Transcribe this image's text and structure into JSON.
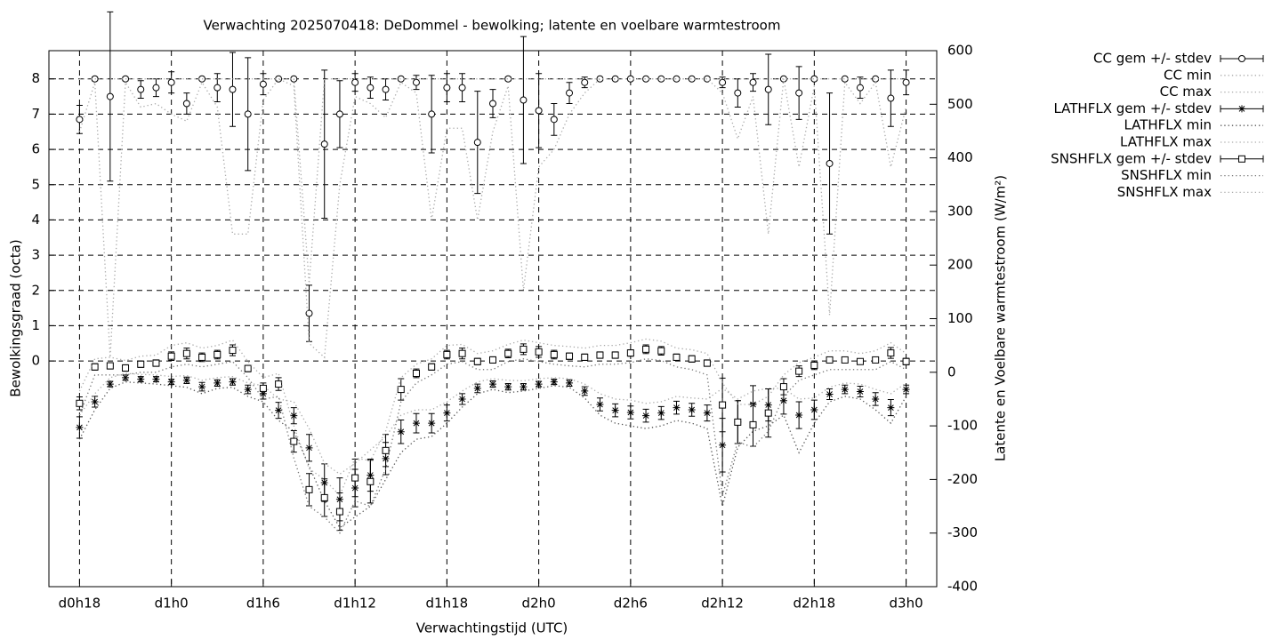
{
  "chart_data": {
    "type": "errorbar",
    "title": "Verwachting 2025070418: DeDommel - bewolking; latente en voelbare warmtestroom",
    "xlabel": "Verwachtingstijd (UTC)",
    "ylabel": "Bewolkingsgraad (octa)",
    "y2label": "Latente en Voelbare warmtestroom (W/m²)",
    "x": [
      0,
      1,
      2,
      3,
      4,
      5,
      6,
      7,
      8,
      9,
      10,
      11,
      12,
      13,
      14,
      15,
      16,
      17,
      18,
      19,
      20,
      21,
      22,
      23,
      24,
      25,
      26,
      27,
      28,
      29,
      30,
      31,
      32,
      33,
      34,
      35,
      36,
      37,
      38,
      39,
      40,
      41,
      42,
      43,
      44,
      45,
      46,
      47,
      48,
      49,
      50,
      51,
      52,
      53,
      54
    ],
    "xlim": [
      -2,
      56
    ],
    "xticks": [
      {
        "value": 0,
        "label": "d0h18"
      },
      {
        "value": 6,
        "label": "d1h0"
      },
      {
        "value": 12,
        "label": "d1h6"
      },
      {
        "value": 18,
        "label": "d1h12"
      },
      {
        "value": 24,
        "label": "d1h18"
      },
      {
        "value": 30,
        "label": "d2h0"
      },
      {
        "value": 36,
        "label": "d2h6"
      },
      {
        "value": 42,
        "label": "d2h12"
      },
      {
        "value": 48,
        "label": "d2h18"
      },
      {
        "value": 54,
        "label": "d3h0"
      }
    ],
    "ylim": [
      -6.4,
      8.8
    ],
    "yticks": [
      0,
      1,
      2,
      3,
      4,
      5,
      6,
      7,
      8
    ],
    "y2lim": [
      -400,
      600
    ],
    "y2ticks": [
      -400,
      -300,
      -200,
      -100,
      0,
      100,
      200,
      300,
      400,
      500,
      600
    ],
    "grid": true,
    "legend": "outside-right",
    "series": [
      {
        "name": "CC gem +/- stdev",
        "color": "#000000",
        "marker": "circle",
        "values": [
          6.85,
          8.0,
          7.5,
          8.0,
          7.7,
          7.75,
          7.9,
          7.3,
          8.0,
          7.75,
          7.7,
          7.0,
          7.85,
          8.0,
          8.0,
          1.35,
          6.15,
          7.0,
          7.9,
          7.75,
          7.7,
          8.0,
          7.9,
          7.0,
          7.75,
          7.75,
          6.2,
          7.3,
          8.0,
          7.4,
          7.1,
          6.85,
          7.6,
          7.9,
          8.0,
          8.0,
          8.0,
          8.0,
          8.0,
          8.0,
          8.0,
          8.0,
          7.9,
          7.6,
          7.9,
          7.7,
          8.0,
          7.6,
          8.0,
          5.6,
          8.0,
          7.75,
          8.0,
          7.45,
          7.9
        ],
        "errors": [
          0.4,
          0.05,
          2.4,
          0.05,
          0.25,
          0.25,
          0.3,
          0.3,
          0,
          0.4,
          1.05,
          1.6,
          0.3,
          0,
          0,
          0.8,
          2.1,
          0.95,
          0.25,
          0.3,
          0.3,
          0,
          0.2,
          1.1,
          0.4,
          0.4,
          1.45,
          0.4,
          0.05,
          1.8,
          1.05,
          0.45,
          0.3,
          0.15,
          0,
          0,
          0,
          0,
          0,
          0,
          0,
          0,
          0.15,
          0.4,
          0.25,
          1.0,
          0,
          0.75,
          0,
          2.0,
          0,
          0.3,
          0,
          0.8,
          0.35
        ]
      },
      {
        "name": "CC min",
        "color": "#aaaaaa",
        "style": "dotted",
        "values": [
          6.5,
          7.9,
          0.1,
          7.9,
          7.2,
          7.3,
          7.0,
          6.8,
          7.9,
          7.2,
          3.6,
          3.6,
          7.4,
          8,
          7.8,
          0.5,
          0.1,
          5.0,
          7.5,
          7.3,
          6.9,
          7.9,
          7.6,
          4.0,
          6.6,
          6.6,
          4.0,
          6.5,
          7.8,
          2.0,
          5.5,
          6.0,
          7.0,
          7.6,
          8,
          8,
          8,
          8,
          8,
          8,
          8,
          8,
          7.6,
          6.3,
          7.5,
          3.6,
          8,
          5.5,
          7.8,
          1.3,
          7.9,
          7.3,
          7.9,
          5.5,
          7.2
        ]
      },
      {
        "name": "CC max",
        "color": "#aaaaaa",
        "style": "dotted",
        "values": [
          8,
          8,
          8,
          8,
          8,
          8,
          8,
          8,
          8,
          8,
          8,
          8,
          8,
          8,
          8,
          2.2,
          8,
          8,
          8,
          8,
          8,
          8,
          8,
          8,
          8,
          8,
          8,
          8,
          8,
          8,
          8,
          8,
          8,
          8,
          8,
          8,
          8,
          8,
          8,
          8,
          8,
          8,
          8,
          8,
          8,
          8,
          8,
          8,
          8,
          8,
          8,
          8,
          8,
          8,
          8
        ]
      },
      {
        "name": "LATHFLX gem +/- stdev",
        "color": "#000000",
        "marker": "star",
        "axis": "y2",
        "values": [
          -103,
          -55,
          -22,
          -10,
          -13,
          -13,
          -18,
          -15,
          -27,
          -20,
          -18,
          -32,
          -40,
          -71,
          -81,
          -141,
          -206,
          -237,
          -216,
          -192,
          -161,
          -111,
          -95,
          -95,
          -76,
          -50,
          -30,
          -22,
          -27,
          -27,
          -22,
          -18,
          -20,
          -35,
          -60,
          -71,
          -75,
          -81,
          -76,
          -66,
          -70,
          -76,
          -136,
          -93,
          -60,
          -61,
          -53,
          -80,
          -70,
          -41,
          -32,
          -36,
          -50,
          -66,
          -32
        ],
        "errors": [
          20,
          10,
          5,
          5,
          5,
          5,
          5,
          6,
          8,
          6,
          6,
          8,
          10,
          15,
          15,
          25,
          35,
          40,
          35,
          30,
          30,
          22,
          18,
          18,
          15,
          10,
          8,
          6,
          6,
          6,
          5,
          5,
          6,
          8,
          12,
          12,
          12,
          12,
          12,
          12,
          12,
          15,
          50,
          40,
          35,
          30,
          25,
          25,
          18,
          10,
          8,
          10,
          12,
          15,
          8
        ]
      },
      {
        "name": "LATHFLX min",
        "color": "#555555",
        "style": "dotted",
        "axis": "y2",
        "values": [
          -125,
          -70,
          -30,
          -18,
          -20,
          -22,
          -25,
          -28,
          -40,
          -30,
          -28,
          -45,
          -55,
          -90,
          -110,
          -175,
          -240,
          -290,
          -270,
          -250,
          -200,
          -150,
          -125,
          -120,
          -95,
          -65,
          -40,
          -32,
          -38,
          -35,
          -30,
          -25,
          -28,
          -48,
          -80,
          -95,
          -100,
          -105,
          -100,
          -90,
          -95,
          -105,
          -250,
          -140,
          -110,
          -100,
          -80,
          -150,
          -95,
          -55,
          -45,
          -50,
          -70,
          -95,
          -45
        ]
      },
      {
        "name": "LATHFLX max",
        "color": "#aaaaaa",
        "style": "dotted",
        "axis": "y2",
        "values": [
          -80,
          -40,
          -10,
          -2,
          -4,
          -5,
          -8,
          -6,
          -15,
          -10,
          -8,
          -20,
          -25,
          -50,
          -55,
          -105,
          -170,
          -190,
          -170,
          -145,
          -120,
          -80,
          -70,
          -70,
          -55,
          -35,
          -18,
          -12,
          -15,
          -16,
          -12,
          -10,
          -12,
          -22,
          -40,
          -50,
          -52,
          -58,
          -55,
          -45,
          -48,
          -50,
          -30,
          -50,
          -35,
          -30,
          -30,
          -50,
          -48,
          -28,
          -20,
          -22,
          -32,
          -40,
          -20
        ]
      },
      {
        "name": "SNSHFLX gem +/- stdev",
        "color": "#000000",
        "marker": "square",
        "axis": "y2",
        "values": [
          -58,
          10,
          12,
          8,
          15,
          17,
          30,
          35,
          28,
          33,
          41,
          7,
          -30,
          -22,
          -129,
          -219,
          -234,
          -260,
          -197,
          -204,
          -146,
          -32,
          -2,
          10,
          33,
          35,
          20,
          23,
          35,
          43,
          38,
          33,
          30,
          28,
          32,
          32,
          36,
          43,
          40,
          28,
          25,
          17,
          -61,
          -93,
          -98,
          -76,
          -27,
          2,
          13,
          23,
          23,
          20,
          23,
          36,
          20
        ],
        "errors": [
          12,
          6,
          6,
          6,
          6,
          6,
          8,
          10,
          8,
          8,
          10,
          6,
          10,
          12,
          20,
          30,
          35,
          35,
          35,
          40,
          30,
          20,
          8,
          6,
          8,
          10,
          6,
          6,
          8,
          10,
          10,
          8,
          6,
          6,
          6,
          6,
          6,
          8,
          8,
          6,
          6,
          6,
          50,
          40,
          40,
          45,
          15,
          10,
          8,
          5,
          5,
          5,
          5,
          10,
          6
        ]
      },
      {
        "name": "SNSHFLX min",
        "color": "#777777",
        "style": "dotted",
        "axis": "y2",
        "values": [
          -80,
          -5,
          -5,
          -5,
          0,
          0,
          10,
          15,
          10,
          15,
          20,
          -10,
          -50,
          -45,
          -160,
          -250,
          -270,
          -300,
          -240,
          -250,
          -180,
          -55,
          -20,
          -5,
          15,
          20,
          5,
          5,
          20,
          25,
          20,
          15,
          12,
          10,
          15,
          15,
          18,
          25,
          22,
          10,
          5,
          -5,
          -230,
          -130,
          -140,
          -110,
          -45,
          -15,
          -5,
          5,
          5,
          5,
          5,
          20,
          5
        ]
      },
      {
        "name": "SNSHFLX max",
        "color": "#aaaaaa",
        "style": "dotted",
        "axis": "y2",
        "values": [
          -35,
          25,
          28,
          22,
          30,
          32,
          50,
          55,
          45,
          50,
          60,
          20,
          -10,
          -2,
          -100,
          -180,
          -200,
          -230,
          -160,
          -165,
          -110,
          -10,
          15,
          25,
          50,
          52,
          35,
          40,
          52,
          60,
          55,
          50,
          48,
          45,
          50,
          50,
          55,
          62,
          58,
          45,
          42,
          35,
          -20,
          -60,
          -60,
          -45,
          -5,
          18,
          28,
          40,
          40,
          35,
          40,
          55,
          35
        ]
      }
    ]
  }
}
